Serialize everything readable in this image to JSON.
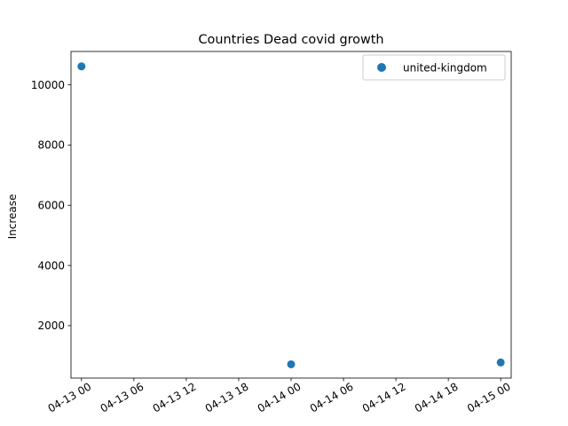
{
  "chart_data": {
    "type": "scatter",
    "title": "Countries Dead covid growth",
    "xlabel": "",
    "ylabel": "Increase",
    "x_type": "datetime",
    "xlim": [
      "2020-04-12T22:48:00",
      "2020-04-15T01:12:00"
    ],
    "ylim": [
      259,
      11107
    ],
    "x_ticks": [
      "04-13 00",
      "04-13 06",
      "04-13 12",
      "04-13 18",
      "04-14 00",
      "04-14 06",
      "04-14 12",
      "04-14 18",
      "04-15 00"
    ],
    "x_tick_values": [
      "2020-04-13T00:00:00",
      "2020-04-13T06:00:00",
      "2020-04-13T12:00:00",
      "2020-04-13T18:00:00",
      "2020-04-14T00:00:00",
      "2020-04-14T06:00:00",
      "2020-04-14T12:00:00",
      "2020-04-14T18:00:00",
      "2020-04-15T00:00:00"
    ],
    "y_ticks": [
      2000,
      4000,
      6000,
      8000,
      10000
    ],
    "legend": "top-right",
    "grid": false,
    "series": [
      {
        "name": "united-kingdom",
        "color": "#1f77b4",
        "x": [
          "2020-04-13T00:00:00",
          "2020-04-14T00:00:00",
          "2020-04-15T00:00:00"
        ],
        "y": [
          10612,
          717,
          778
        ]
      }
    ]
  }
}
